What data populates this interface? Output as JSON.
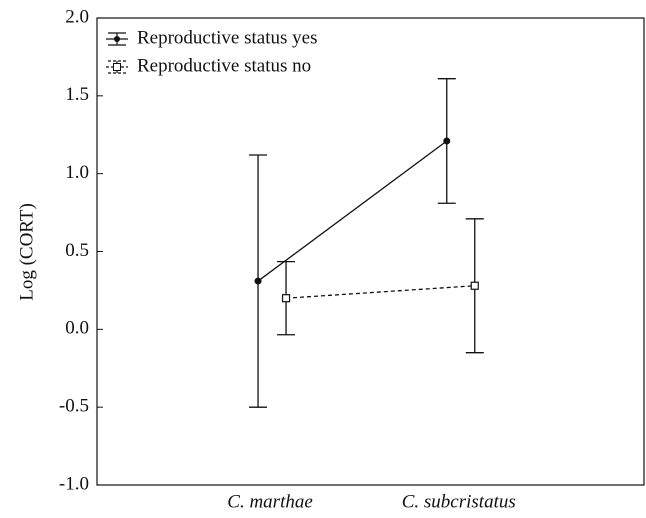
{
  "chart_data": {
    "type": "line",
    "y_label": "Log (CORT)",
    "categories": [
      "C. marthae",
      "C. subcristatus"
    ],
    "series": [
      {
        "name": "Reproductive status yes",
        "color": "#111111",
        "dash": "solid",
        "marker": "filled-circle",
        "values": [
          0.31,
          1.21
        ],
        "errors": [
          0.81,
          0.4
        ]
      },
      {
        "name": "Reproductive status no",
        "color": "#111111",
        "dash": "dashed",
        "marker": "open-square",
        "values": [
          0.2,
          0.28
        ],
        "errors": [
          0.235,
          0.43
        ]
      }
    ],
    "ylim": [
      -1.0,
      2.0
    ],
    "yticks": [
      {
        "value": -1.0,
        "label": "-1.0"
      },
      {
        "value": -0.5,
        "label": "-0.5"
      },
      {
        "value": 0.0,
        "label": "0.0"
      },
      {
        "value": 0.5,
        "label": "0.5"
      },
      {
        "value": 1.0,
        "label": "1.0"
      },
      {
        "value": 1.5,
        "label": "1.5"
      },
      {
        "value": 2.0,
        "label": "2.0"
      }
    ],
    "legend": "upper left"
  }
}
